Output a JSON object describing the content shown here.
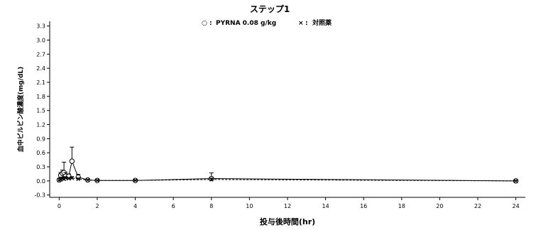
{
  "chart_data": {
    "type": "line",
    "title": "ステップ1",
    "xlabel": "投与後時間(hr)",
    "ylabel": "血中ピルビン酸濃度(mg/dL)",
    "xlim": [
      -0.5,
      24.5
    ],
    "ylim": [
      -0.35,
      3.4
    ],
    "xticks": [
      0,
      2,
      4,
      6,
      8,
      10,
      12,
      14,
      16,
      18,
      20,
      22,
      24
    ],
    "yticks": [
      -0.3,
      0.0,
      0.3,
      0.6,
      0.9,
      1.2,
      1.5,
      1.8,
      2.1,
      2.4,
      2.7,
      3.0,
      3.3
    ],
    "ytick_labels": [
      "-0.3",
      "0.0",
      "0.3",
      "0.6",
      "0.9",
      "1.2",
      "1.5",
      "1.8",
      "2.1",
      "2.4",
      "2.7",
      "3.0",
      "3.3"
    ],
    "legend_position": "top",
    "legend": [
      {
        "symbol": "○",
        "sep": ":",
        "label": "PYRNA 0.08 g/kg"
      },
      {
        "symbol": "×",
        "sep": ":",
        "label": "対照薬"
      }
    ],
    "series": [
      {
        "name": "PYRNA 0.08 g/kg",
        "marker": "circle",
        "line": "solid",
        "x": [
          0,
          0.08,
          0.17,
          0.25,
          0.33,
          0.5,
          0.67,
          1,
          1.5,
          2,
          4,
          8,
          24
        ],
        "y": [
          0.02,
          0.12,
          0.16,
          0.18,
          0.1,
          0.1,
          0.42,
          0.08,
          0.02,
          0.01,
          0.01,
          0.05,
          0.0
        ],
        "err": [
          0,
          0.06,
          0.07,
          0.22,
          0.08,
          0.05,
          0.3,
          0.06,
          0.02,
          0.02,
          0.01,
          0.12,
          0.02
        ]
      },
      {
        "name": "対照薬",
        "marker": "cross",
        "line": "dashed",
        "x": [
          0,
          0.08,
          0.17,
          0.25,
          0.33,
          0.5,
          0.67,
          1,
          1.5,
          2,
          4,
          8,
          24
        ],
        "y": [
          0.02,
          0.03,
          0.05,
          0.04,
          0.06,
          0.05,
          0.06,
          0.04,
          0.02,
          0.01,
          0.01,
          0.03,
          0.0
        ],
        "err": [
          0,
          0.02,
          0.03,
          0.02,
          0.03,
          0.02,
          0.03,
          0.02,
          0.01,
          0.01,
          0.01,
          0.03,
          0.01
        ]
      }
    ],
    "colors": {
      "ink": "#000000",
      "background": "#ffffff"
    }
  }
}
